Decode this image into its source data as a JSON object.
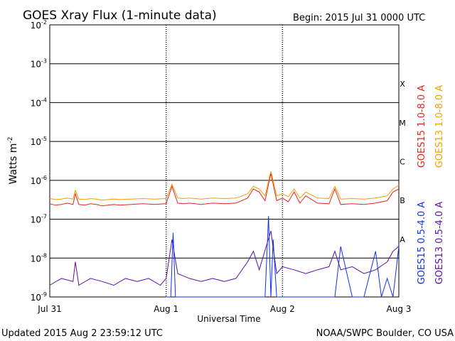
{
  "chart_data": {
    "type": "line",
    "title": "GOES Xray Flux (1-minute data)",
    "begin_label": "Begin:  2015 Jul 31 0000 UTC",
    "xlabel": "Universal Time",
    "ylabel": "Watts m",
    "ylabel_sup": "-2",
    "y_scale": "log",
    "ylim": [
      1e-09,
      0.01
    ],
    "xlim_days": [
      0,
      3
    ],
    "grid": true,
    "x_ticks": [
      {
        "label": "Jul 31",
        "day": 0
      },
      {
        "label": "Aug 1",
        "day": 1
      },
      {
        "label": "Aug 2",
        "day": 2
      },
      {
        "label": "Aug 3",
        "day": 3
      }
    ],
    "y_ticks": [
      {
        "base": "10",
        "exp": "-9",
        "value": 1e-09
      },
      {
        "base": "10",
        "exp": "-8",
        "value": 1e-08
      },
      {
        "base": "10",
        "exp": "-7",
        "value": 1e-07
      },
      {
        "base": "10",
        "exp": "-6",
        "value": 1e-06
      },
      {
        "base": "10",
        "exp": "-5",
        "value": 1e-05
      },
      {
        "base": "10",
        "exp": "-4",
        "value": 0.0001
      },
      {
        "base": "10",
        "exp": "-3",
        "value": 0.001
      },
      {
        "base": "10",
        "exp": "-2",
        "value": 0.01
      }
    ],
    "flare_classes": [
      {
        "label": "A",
        "lower": 1e-08
      },
      {
        "label": "B",
        "lower": 1e-07
      },
      {
        "label": "C",
        "lower": 1e-06
      },
      {
        "label": "M",
        "lower": 1e-05
      },
      {
        "label": "X",
        "lower": 0.0001
      }
    ],
    "series": [
      {
        "name": "GOES15 1.0-8.0 A",
        "color": "#e8241c",
        "x_day": [
          0,
          0.05,
          0.1,
          0.15,
          0.2,
          0.22,
          0.25,
          0.3,
          0.35,
          0.4,
          0.45,
          0.5,
          0.55,
          0.6,
          0.7,
          0.8,
          0.9,
          1.0,
          1.05,
          1.1,
          1.15,
          1.2,
          1.3,
          1.4,
          1.5,
          1.6,
          1.7,
          1.75,
          1.8,
          1.85,
          1.9,
          1.95,
          2.0,
          2.05,
          2.1,
          2.15,
          2.2,
          2.3,
          2.4,
          2.45,
          2.5,
          2.6,
          2.7,
          2.8,
          2.9,
          2.95,
          3.0
        ],
        "y": [
          2.5e-07,
          2.3e-07,
          2.4e-07,
          2.6e-07,
          2.4e-07,
          4.5e-07,
          2.4e-07,
          2.3e-07,
          2.5e-07,
          2.4e-07,
          2.2e-07,
          2.3e-07,
          2.4e-07,
          2.3e-07,
          2.4e-07,
          2.5e-07,
          2.4e-07,
          2.5e-07,
          7e-07,
          2.6e-07,
          2.5e-07,
          2.6e-07,
          2.4e-07,
          2.6e-07,
          2.5e-07,
          2.6e-07,
          3.5e-07,
          6e-07,
          5e-07,
          3e-07,
          1.5e-06,
          3e-07,
          3.5e-07,
          2.8e-07,
          5e-07,
          2.6e-07,
          4e-07,
          2.6e-07,
          2.5e-07,
          6e-07,
          2.4e-07,
          2.5e-07,
          2.4e-07,
          2.6e-07,
          3e-07,
          5e-07,
          6e-07
        ]
      },
      {
        "name": "GOES13 1.0-8.0 A",
        "color": "#f0a000",
        "x_day": [
          0,
          0.05,
          0.1,
          0.15,
          0.2,
          0.22,
          0.25,
          0.3,
          0.35,
          0.4,
          0.45,
          0.5,
          0.55,
          0.6,
          0.7,
          0.8,
          0.9,
          1.0,
          1.05,
          1.1,
          1.15,
          1.2,
          1.3,
          1.4,
          1.5,
          1.6,
          1.7,
          1.75,
          1.8,
          1.85,
          1.9,
          1.95,
          2.0,
          2.05,
          2.1,
          2.15,
          2.2,
          2.3,
          2.4,
          2.45,
          2.5,
          2.6,
          2.7,
          2.8,
          2.9,
          2.95,
          3.0
        ],
        "y": [
          3.4e-07,
          3.2e-07,
          3.3e-07,
          3.5e-07,
          3.3e-07,
          5.5e-07,
          3.3e-07,
          3.2e-07,
          3.4e-07,
          3.3e-07,
          3.1e-07,
          3.2e-07,
          3.3e-07,
          3.2e-07,
          3.3e-07,
          3.4e-07,
          3.3e-07,
          3.4e-07,
          8e-07,
          3.5e-07,
          3.4e-07,
          3.5e-07,
          3.3e-07,
          3.5e-07,
          3.4e-07,
          3.5e-07,
          4.5e-07,
          7e-07,
          6e-07,
          4e-07,
          1.7e-06,
          4e-07,
          4.5e-07,
          3.8e-07,
          6e-07,
          3.5e-07,
          5e-07,
          3.5e-07,
          3.4e-07,
          7e-07,
          3.3e-07,
          3.4e-07,
          3.3e-07,
          3.5e-07,
          4e-07,
          6e-07,
          7.5e-07
        ]
      },
      {
        "name": "GOES15 0.5-4.0 A",
        "color": "#1030f0",
        "x_day": [
          1.0,
          1.04,
          1.06,
          1.08,
          1.1,
          1.3,
          1.5,
          1.7,
          1.85,
          1.88,
          1.9,
          1.92,
          1.95,
          2.2,
          2.45,
          2.5,
          2.6,
          2.7,
          2.8,
          2.85,
          2.9,
          2.95,
          3.0
        ],
        "y": [
          1e-09,
          1e-09,
          4.5e-08,
          1e-09,
          1e-09,
          1e-09,
          1e-09,
          1e-09,
          1e-09,
          1.2e-07,
          1e-09,
          3e-08,
          1e-09,
          1e-09,
          1e-09,
          2e-08,
          1e-09,
          1e-09,
          1.5e-08,
          1e-09,
          3e-09,
          1e-09,
          2e-08
        ]
      },
      {
        "name": "GOES13 0.5-4.0 A",
        "color": "#5a10a8",
        "x_day": [
          0,
          0.1,
          0.2,
          0.22,
          0.25,
          0.35,
          0.45,
          0.55,
          0.65,
          0.75,
          0.85,
          0.95,
          1.0,
          1.05,
          1.1,
          1.2,
          1.3,
          1.4,
          1.5,
          1.6,
          1.7,
          1.75,
          1.8,
          1.9,
          1.95,
          2.0,
          2.1,
          2.2,
          2.3,
          2.4,
          2.45,
          2.5,
          2.6,
          2.7,
          2.8,
          2.9,
          2.95,
          3.0
        ],
        "y": [
          2e-09,
          3e-09,
          2.5e-09,
          8e-09,
          2e-09,
          3e-09,
          2.5e-09,
          2e-09,
          3e-09,
          2.5e-09,
          3e-09,
          2e-09,
          3e-09,
          3e-08,
          4e-09,
          3e-09,
          2.5e-09,
          3e-09,
          2.5e-09,
          3e-09,
          8e-09,
          1.5e-08,
          5e-09,
          5e-08,
          4e-09,
          6e-09,
          5e-09,
          4e-09,
          5e-09,
          6e-09,
          1.5e-08,
          5e-09,
          6e-09,
          4e-09,
          5e-09,
          8e-09,
          1.5e-08,
          2e-08
        ]
      }
    ],
    "updated_label": "Updated 2015 Aug  2 23:59:12 UTC",
    "credit_label": "NOAA/SWPC Boulder, CO USA"
  }
}
